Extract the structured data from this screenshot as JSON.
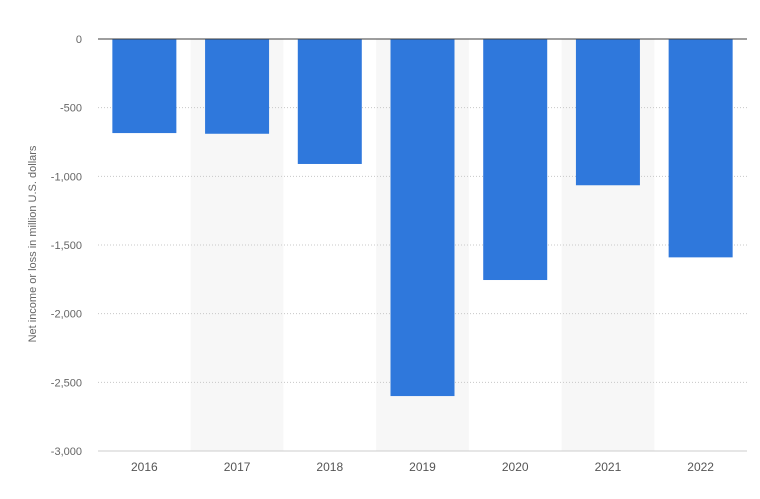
{
  "chart_data": {
    "type": "bar",
    "categories": [
      "2016",
      "2017",
      "2018",
      "2019",
      "2020",
      "2021",
      "2022"
    ],
    "series": [
      {
        "values": [
          -685,
          -690,
          -910,
          -2600,
          -1755,
          -1065,
          -1590
        ]
      }
    ],
    "ylabel": "Net income or loss in million U.S. dollars",
    "xlabel": "",
    "ylim": [
      -3000,
      0
    ],
    "yticks": [
      0,
      -500,
      -1000,
      -1500,
      -2000,
      -2500,
      -3000
    ],
    "ytick_labels": [
      "0",
      "-500",
      "-1,000",
      "-1,500",
      "-2,000",
      "-2,500",
      "-3,000"
    ],
    "grid": true,
    "bar_color": "#2f78dc",
    "band_color": "#f7f7f7"
  }
}
